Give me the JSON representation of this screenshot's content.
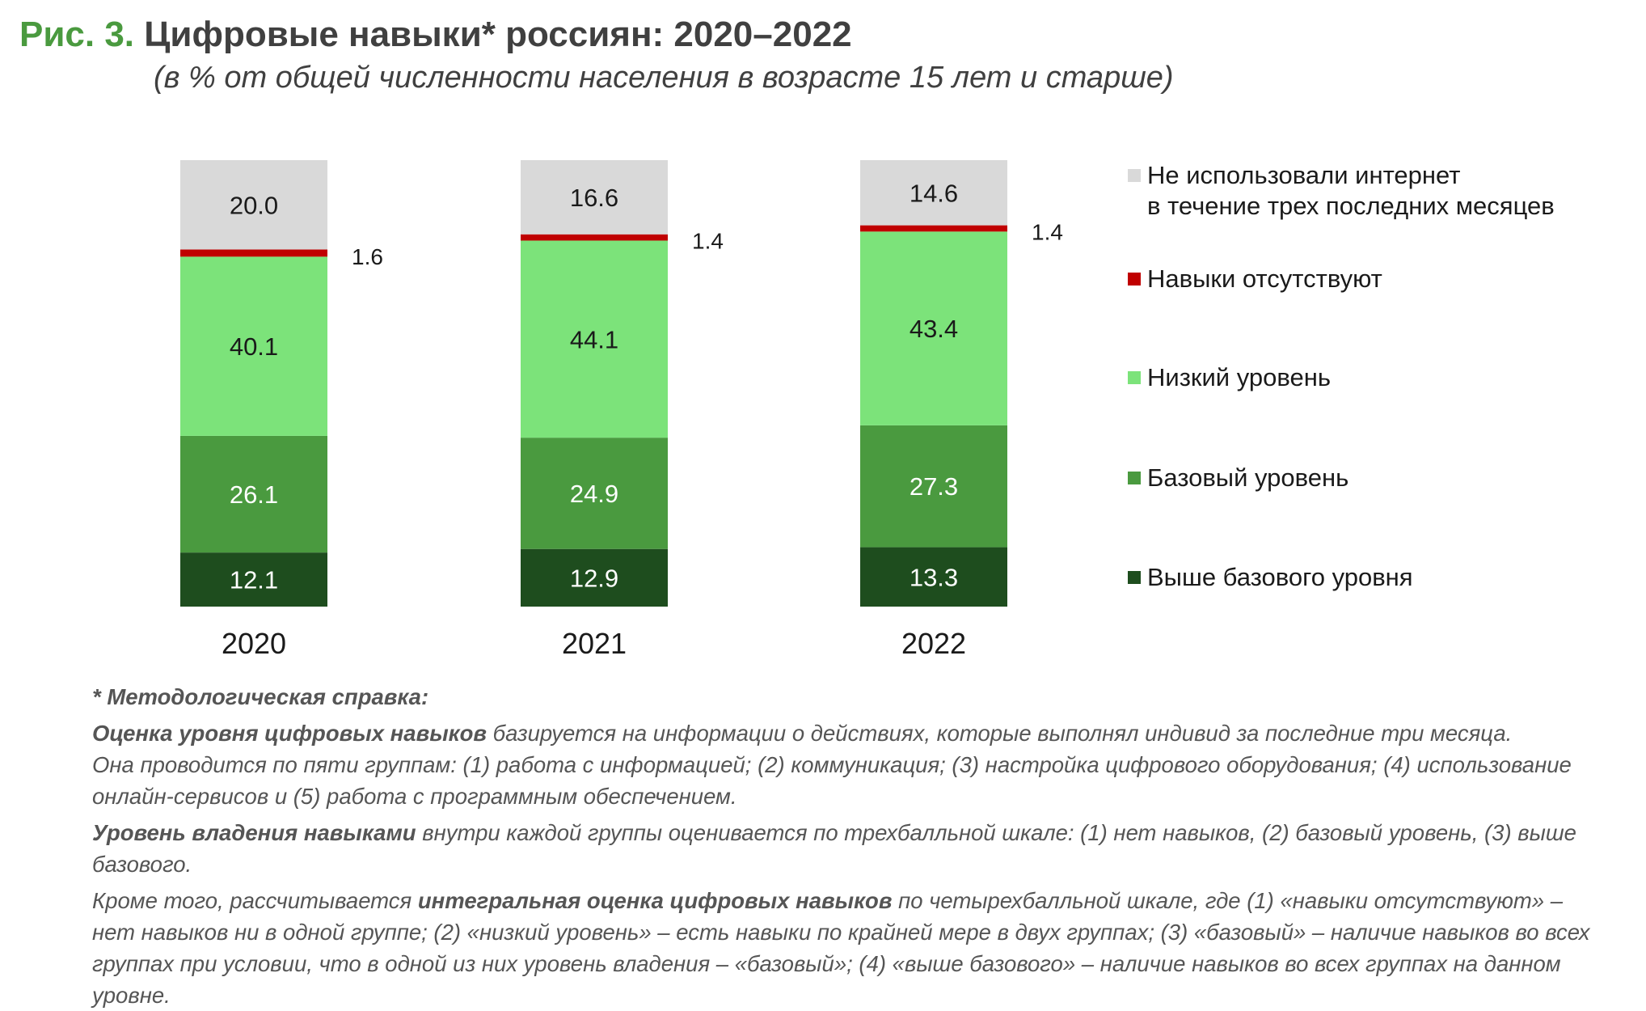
{
  "header": {
    "title_prefix": "Рис. 3.",
    "title_main": "Цифровые навыки* россиян: 2020–2022",
    "subtitle": "(в % от общей численности населения в возрасте 15 лет и старше)"
  },
  "colors": {
    "no_internet": "#d9d9d9",
    "no_skills": "#c00000",
    "low": "#7ce37a",
    "basic": "#4a9a3f",
    "above_basic": "#1e4d1e",
    "title_accent": "#4a9a3f"
  },
  "chart_data": {
    "type": "bar",
    "stacked": true,
    "categories": [
      "2020",
      "2021",
      "2022"
    ],
    "series": [
      {
        "name": "Выше базового уровня",
        "key": "above_basic",
        "values": [
          12.1,
          12.9,
          13.3
        ],
        "labels": [
          "12.1",
          "12.9",
          "13.3"
        ]
      },
      {
        "name": "Базовый уровень",
        "key": "basic",
        "values": [
          26.1,
          24.9,
          27.3
        ],
        "labels": [
          "26.1",
          "24.9",
          "27.3"
        ]
      },
      {
        "name": "Низкий уровень",
        "key": "low",
        "values": [
          40.1,
          44.1,
          43.4
        ],
        "labels": [
          "40.1",
          "44.1",
          "43.4"
        ]
      },
      {
        "name": "Навыки отсутствуют",
        "key": "no_skills",
        "values": [
          1.6,
          1.4,
          1.4
        ],
        "labels": [
          "1.6",
          "1.4",
          "1.4"
        ]
      },
      {
        "name": "Не использовали интернет в течение трех последних месяцев",
        "key": "no_internet",
        "values": [
          20.0,
          16.6,
          14.6
        ],
        "labels": [
          "20.0",
          "16.6",
          "14.6"
        ]
      }
    ],
    "ylim": [
      0,
      100
    ],
    "legend_position": "right"
  },
  "legend": [
    {
      "key": "no_internet",
      "lines": [
        "Не использовали интернет",
        "в течение трех последних месяцев"
      ]
    },
    {
      "key": "no_skills",
      "lines": [
        "Навыки отсутствуют"
      ]
    },
    {
      "key": "low",
      "lines": [
        "Низкий уровень"
      ]
    },
    {
      "key": "basic",
      "lines": [
        "Базовый уровень"
      ]
    },
    {
      "key": "above_basic",
      "lines": [
        "Выше базового уровня"
      ]
    }
  ],
  "notes": {
    "heading": "* Методологическая справка:",
    "p1_bold": "Оценка уровня цифровых навыков",
    "p1_rest": " базируется на информации о действиях, которые выполнял индивид за последние три месяца.",
    "p1_line2": "Она проводится по пяти группам: (1) работа с информацией; (2) коммуникация; (3) настройка цифрового оборудования; (4) использование",
    "p1_line3": "онлайн-сервисов и (5) работа с программным обеспечением.",
    "p2_bold": "Уровень владения навыками",
    "p2_rest": " внутри каждой группы оценивается по трехбалльной шкале: (1) нет навыков, (2) базовый уровень, (3) выше базового.",
    "p3_pre": "Кроме того, рассчитывается ",
    "p3_bold": "интегральная оценка цифровых навыков",
    "p3_rest": " по четырехбалльной шкале, где (1) «навыки отсутствуют» –",
    "p3_line2": "нет навыков ни в одной группе; (2) «низкий уровень» – есть навыки по крайней мере в двух группах; (3) «базовый» – наличие навыков во всех",
    "p3_line3": "группах при условии, что в одной из них уровень владения – «базовый»; (4) «выше базового» – наличие навыков во всех группах на данном уровне."
  }
}
